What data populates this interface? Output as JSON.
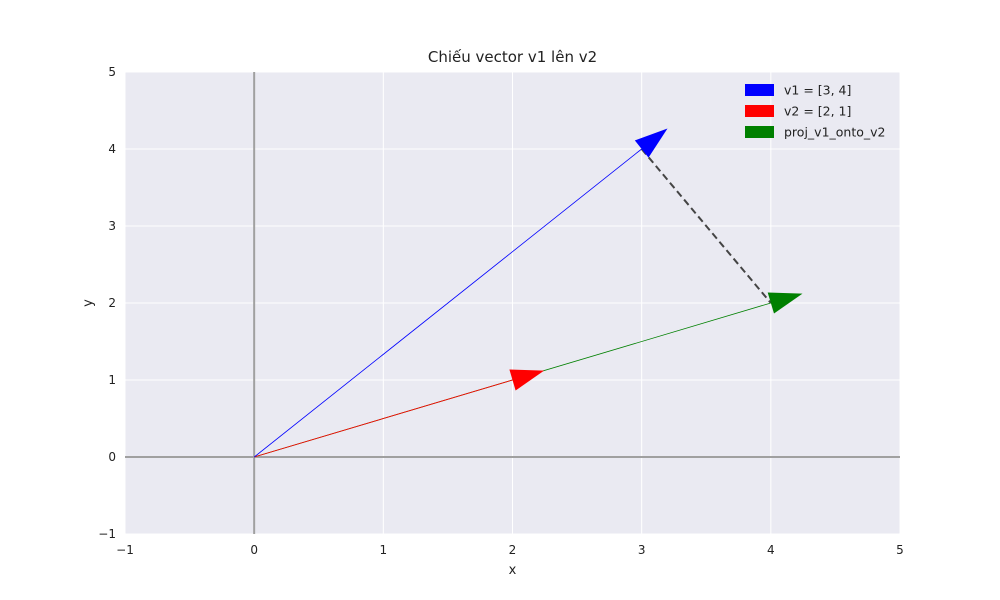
{
  "chart_data": {
    "type": "vector",
    "title": "Chiếu vector v1 lên v2",
    "xlabel": "x",
    "ylabel": "y",
    "xlim": [
      -1,
      5
    ],
    "ylim": [
      -1,
      5
    ],
    "xticks": [
      -1,
      0,
      1,
      2,
      3,
      4,
      5
    ],
    "yticks": [
      -1,
      0,
      1,
      2,
      3,
      4,
      5
    ],
    "grid": true,
    "legend_position": "top-right",
    "vectors": [
      {
        "name": "v1 = [3, 4]",
        "origin": [
          0,
          0
        ],
        "components": [
          3,
          4
        ],
        "color": "#0000ff"
      },
      {
        "name": "v2 = [2, 1]",
        "origin": [
          0,
          0
        ],
        "components": [
          2,
          1
        ],
        "color": "#ff0000"
      },
      {
        "name": "proj_v1_onto_v2",
        "origin": [
          0,
          0
        ],
        "components": [
          4,
          2
        ],
        "color": "#008000"
      }
    ],
    "dashed_segment": {
      "from": [
        3,
        4
      ],
      "to": [
        4,
        2
      ],
      "color": "#444444"
    },
    "reference_lines": {
      "x": 0,
      "y": 0,
      "color": "#a0a0a0"
    },
    "background_color": "#eaeaf2"
  }
}
